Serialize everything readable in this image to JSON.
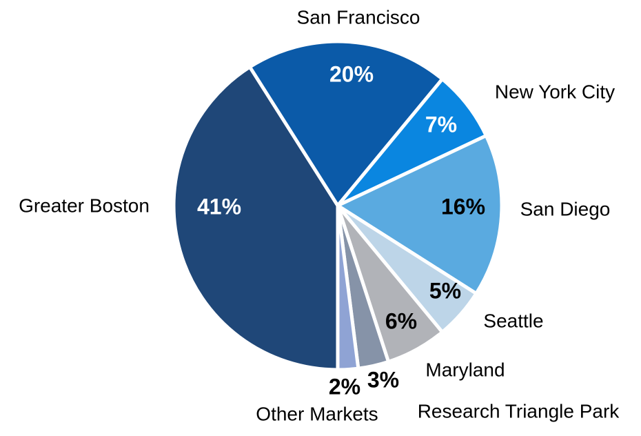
{
  "chart_data": {
    "type": "pie",
    "categories": [
      "Greater Boston",
      "San Francisco",
      "New York City",
      "San Diego",
      "Seattle",
      "Maryland",
      "Research Triangle Park",
      "Other Markets"
    ],
    "values": [
      41,
      20,
      7,
      16,
      5,
      6,
      3,
      2
    ],
    "value_labels": [
      "41%",
      "20%",
      "7%",
      "16%",
      "5%",
      "6%",
      "3%",
      "2%"
    ],
    "colors": [
      "#1f4778",
      "#0b5aa8",
      "#0a86e0",
      "#5aaae0",
      "#bdd5e8",
      "#b1b3b8",
      "#8693a8",
      "#8fa3d4"
    ]
  }
}
